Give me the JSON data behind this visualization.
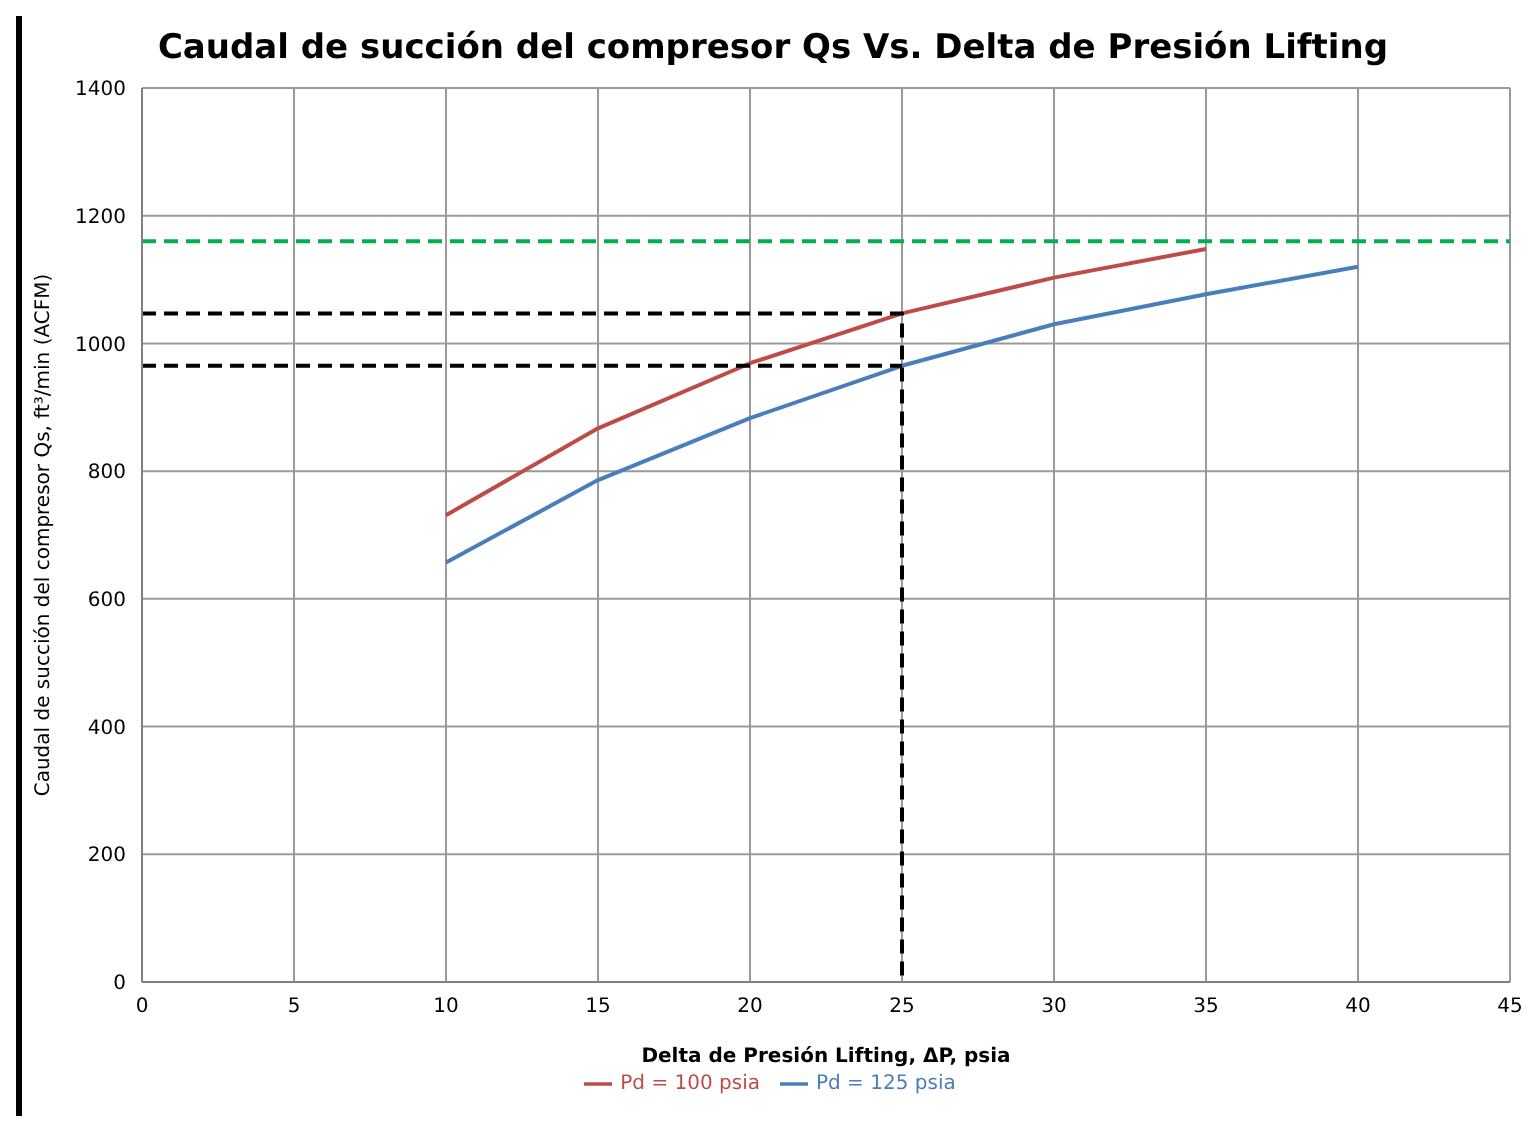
{
  "chart_data": {
    "type": "line",
    "title": "Caudal de succión del compresor Qs Vs. Delta de Presión Lifting",
    "xlabel": "Delta de Presión Lifting, ΔP, psia",
    "ylabel": "Caudal de succión del compresor Qs, ft³/min (ACFM)",
    "series": [
      {
        "name": "Pd = 125 psia",
        "color": "#4a7ebb",
        "x": [
          10,
          15,
          20,
          25,
          30,
          35,
          40
        ],
        "values": [
          657,
          786,
          883,
          965,
          1030,
          1077,
          1120
        ]
      },
      {
        "name": "Pd = 100 psia",
        "color": "#be4b48",
        "x": [
          10,
          15,
          20,
          25,
          30,
          35
        ],
        "values": [
          731,
          867,
          969,
          1047,
          1103,
          1148
        ]
      },
      {
        "color": "#000000",
        "line_style": "dashed",
        "x": [
          0,
          25,
          25
        ],
        "values": [
          1047,
          1047,
          0
        ]
      },
      {
        "color": "#000000",
        "line_style": "dashed",
        "x": [
          0,
          25
        ],
        "values": [
          965,
          965
        ]
      }
    ],
    "ref_lines": [
      {
        "axis": "y",
        "value": 1160,
        "color": "#00b050",
        "line_style": "dashed"
      }
    ],
    "xlim": [
      0,
      45
    ],
    "xticks": [
      0,
      5,
      10,
      15,
      20,
      25,
      30,
      35,
      40,
      45
    ],
    "ylim": [
      0,
      1400
    ],
    "yticks": [
      0,
      200,
      400,
      600,
      800,
      1000,
      1200,
      1400
    ],
    "grid": true,
    "legend": "bottom",
    "line_style": "solid",
    "marker": "none"
  }
}
